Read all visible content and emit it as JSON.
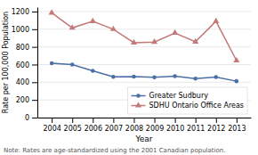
{
  "chart_data": {
    "type": "line",
    "x": [
      2004,
      2005,
      2006,
      2007,
      2008,
      2009,
      2010,
      2011,
      2012,
      2013
    ],
    "series": [
      {
        "name": "Greater Sudbury",
        "color": "#4a6fa5",
        "marker": "circle",
        "line_style": "solid",
        "values": [
          615,
          600,
          530,
          462,
          463,
          455,
          468,
          440,
          458,
          412
        ]
      },
      {
        "name": "SDHU Ontario Office Areas",
        "color": "#c47a7a",
        "marker": "triangle",
        "line_style": "solid",
        "values": [
          1185,
          1015,
          1090,
          1000,
          848,
          855,
          958,
          858,
          1090,
          645
        ]
      }
    ],
    "xlabel": "Year",
    "ylabel": "Rate per 100,000 Population",
    "xlim": [
      2003.3,
      2013.7
    ],
    "xticks": [
      2004,
      2005,
      2006,
      2007,
      2008,
      2009,
      2010,
      2011,
      2012,
      2013
    ],
    "ylim": [
      0,
      1250
    ],
    "yticks": [
      0,
      200,
      400,
      600,
      800,
      1000,
      1200
    ],
    "grid": "y",
    "legend": "lower right",
    "note": "Note: Rates are age-standardized using the 2001 Canadian population."
  }
}
